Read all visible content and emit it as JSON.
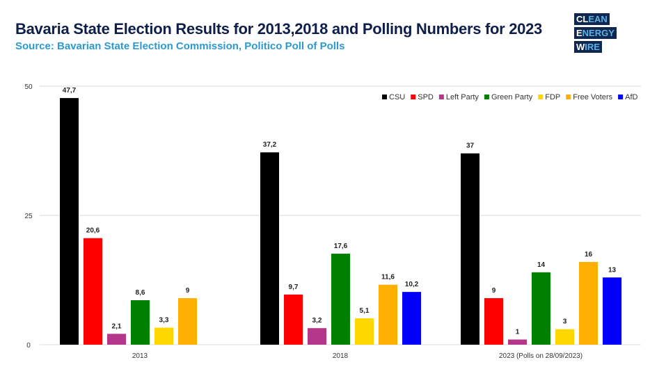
{
  "chart_data": {
    "type": "bar",
    "title": "Bavaria State Election Results for 2013,2018 and Polling Numbers for 2023",
    "subtitle": "Source: Bavarian State Election Commission, Politico Poll of Polls",
    "categories": [
      "2013",
      "2018",
      "2023 (Polls on 28/09/2023)"
    ],
    "ylim": [
      0,
      50
    ],
    "yticks": [
      "0",
      "25",
      "50"
    ],
    "grid": true,
    "legend_position": "top-right",
    "series": [
      {
        "name": "CSU",
        "color": "#000000",
        "values": [
          47.7,
          37.2,
          37
        ],
        "labels": [
          "47,7",
          "37,2",
          "37"
        ]
      },
      {
        "name": "SPD",
        "color": "#ff0000",
        "values": [
          20.6,
          9.7,
          9
        ],
        "labels": [
          "20,6",
          "9,7",
          "9"
        ]
      },
      {
        "name": "Left Party",
        "color": "#b5378a",
        "values": [
          2.1,
          3.2,
          1
        ],
        "labels": [
          "2,1",
          "3,2",
          "1"
        ]
      },
      {
        "name": "Green Party",
        "color": "#008000",
        "values": [
          8.6,
          17.6,
          14
        ],
        "labels": [
          "8,6",
          "17,6",
          "14"
        ]
      },
      {
        "name": "FDP",
        "color": "#ffd700",
        "values": [
          3.3,
          5.1,
          3
        ],
        "labels": [
          "3,3",
          "5,1",
          "3"
        ]
      },
      {
        "name": "Free Voters",
        "color": "#ffb000",
        "values": [
          9,
          11.6,
          16
        ],
        "labels": [
          "9",
          "11,6",
          "16"
        ]
      },
      {
        "name": "AfD",
        "color": "#0000ff",
        "values": [
          null,
          10.2,
          13
        ],
        "labels": [
          null,
          "10,2",
          "13"
        ]
      }
    ]
  },
  "logo": {
    "line1": "CLEAN",
    "line2": "ENERGY",
    "line3": "WIRE"
  }
}
